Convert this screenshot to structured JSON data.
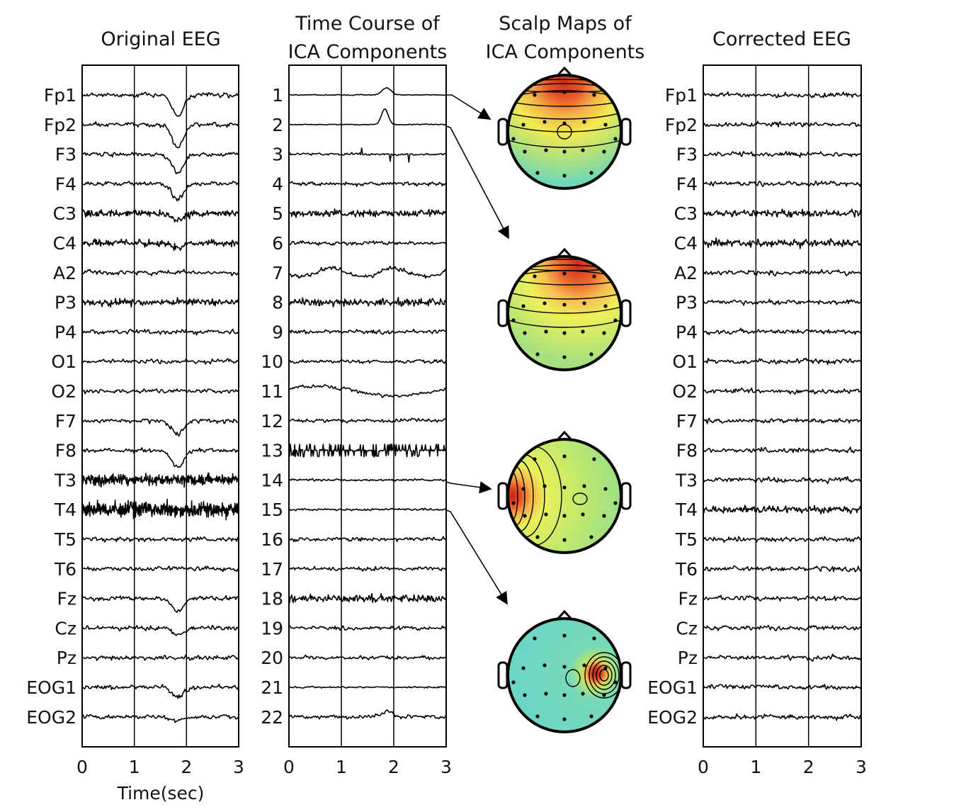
{
  "panels": {
    "original": {
      "title": "Original EEG",
      "channels": [
        "Fp1",
        "Fp2",
        "F3",
        "F4",
        "C3",
        "C4",
        "A2",
        "P3",
        "P4",
        "O1",
        "O2",
        "F7",
        "F8",
        "T3",
        "T4",
        "T5",
        "T6",
        "Fz",
        "Cz",
        "Pz",
        "EOG1",
        "EOG2"
      ],
      "x_ticks": [
        "0",
        "1",
        "2",
        "3"
      ],
      "x_label": "Time(sec)"
    },
    "ica_time": {
      "title_line1": "Time Course of",
      "title_line2": "ICA Components",
      "components": [
        "1",
        "2",
        "3",
        "4",
        "5",
        "6",
        "7",
        "8",
        "9",
        "10",
        "11",
        "12",
        "13",
        "14",
        "15",
        "16",
        "17",
        "18",
        "19",
        "20",
        "21",
        "22"
      ],
      "x_ticks": [
        "0",
        "1",
        "2",
        "3"
      ]
    },
    "scalp_maps": {
      "title_line1": "Scalp Maps of",
      "title_line2": "ICA Components",
      "maps_from_components": [
        "1",
        "2",
        "14",
        "15"
      ]
    },
    "corrected": {
      "title": "Corrected EEG",
      "channels": [
        "Fp1",
        "Fp2",
        "F3",
        "F4",
        "C3",
        "C4",
        "A2",
        "P3",
        "P4",
        "O1",
        "O2",
        "F7",
        "F8",
        "T3",
        "T4",
        "T5",
        "T6",
        "Fz",
        "Cz",
        "Pz",
        "EOG1",
        "EOG2"
      ],
      "x_ticks": [
        "0",
        "1",
        "2",
        "3"
      ]
    }
  },
  "colors": {
    "trace": "#000000",
    "map_red": "#d7301f",
    "map_orange": "#f08c3c",
    "map_yellow": "#f5e94a",
    "map_green": "#a8e07a",
    "map_cyan": "#5fd3d8"
  }
}
